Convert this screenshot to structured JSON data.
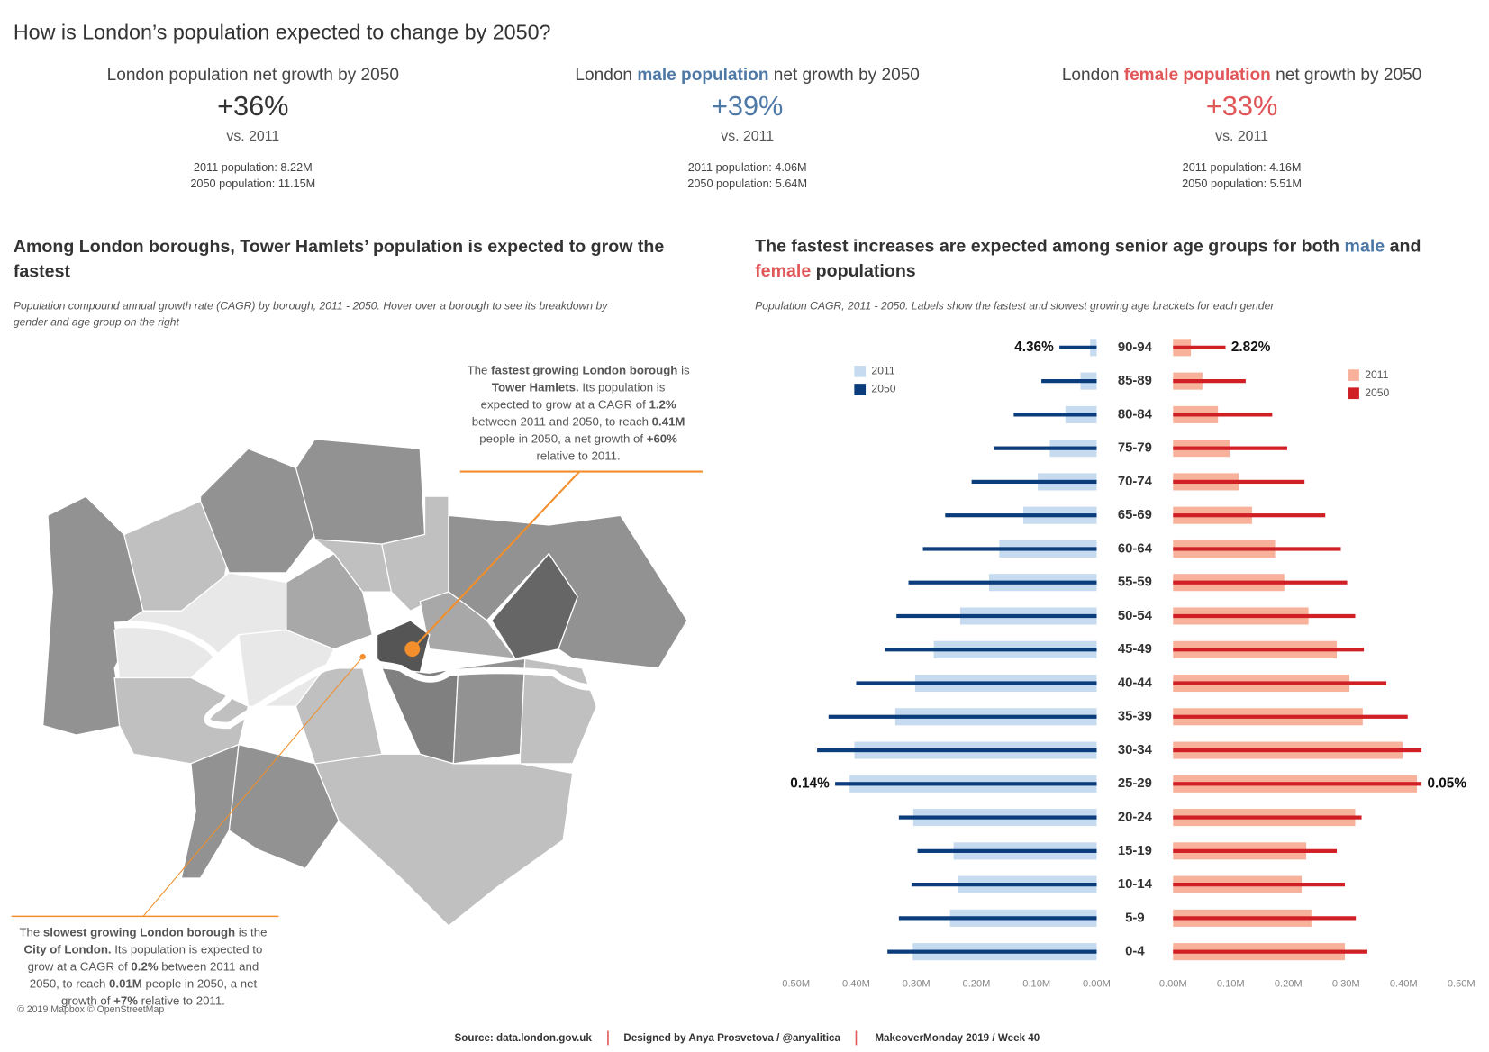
{
  "header": {
    "title": "How is London’s population expected to change by 2050?"
  },
  "kpis": [
    {
      "heading": [
        {
          "text": "London population net growth by 2050"
        }
      ],
      "value": "+36%",
      "color": "#333333",
      "comparison": "vs. 2011",
      "details": [
        "2011 population: 8.22M",
        "2050 population: 11.15M"
      ]
    },
    {
      "heading": [
        {
          "text": "London "
        },
        {
          "text": "male population",
          "color": "#4e79a7",
          "bold": true
        },
        {
          "text": " net growth by 2050"
        }
      ],
      "value": "+39%",
      "color": "#4e79a7",
      "comparison": "vs. 2011",
      "details": [
        "2011 population: 4.06M",
        "2050 population: 5.64M"
      ]
    },
    {
      "heading": [
        {
          "text": "London "
        },
        {
          "text": "female population",
          "color": "#e15759",
          "bold": true
        },
        {
          "text": " net growth by 2050"
        }
      ],
      "value": "+33%",
      "color": "#e15759",
      "comparison": "vs. 2011",
      "details": [
        "2011 population: 4.16M",
        "2050 population: 5.51M"
      ]
    }
  ],
  "map": {
    "title": [
      "Among London boroughs, Tower Hamlets’ population is expected to grow the",
      "fastest"
    ],
    "subtitle": [
      "Population compound annual growth rate (CAGR) by borough, 2011 - 2050. Hover over a borough to see its breakdown by",
      "gender and age group on the right"
    ],
    "annotations": [
      {
        "lines": [
          [
            {
              "text": "The "
            },
            {
              "text": "fastest growing London borough",
              "bold": true
            },
            {
              "text": " is"
            }
          ],
          [
            {
              "text": "Tower Hamlets.",
              "bold": true
            },
            {
              "text": " Its population is"
            }
          ],
          [
            {
              "text": "expected to grow at a CAGR of "
            },
            {
              "text": "1.2%",
              "bold": true
            }
          ],
          [
            {
              "text": "between 2011 and 2050, to reach "
            },
            {
              "text": "0.41M",
              "bold": true
            }
          ],
          [
            {
              "text": "people in 2050, a net growth of "
            },
            {
              "text": "+60%",
              "bold": true
            }
          ],
          [
            {
              "text": "relative to 2011."
            }
          ]
        ]
      },
      {
        "lines": [
          [
            {
              "text": "The "
            },
            {
              "text": "slowest growing London borough",
              "bold": true
            },
            {
              "text": " is the"
            }
          ],
          [
            {
              "text": "City of London.",
              "bold": true
            },
            {
              "text": " Its population is expected to"
            }
          ],
          [
            {
              "text": "grow at a CAGR of "
            },
            {
              "text": "0.2%",
              "bold": true
            },
            {
              "text": " between 2011 and"
            }
          ],
          [
            {
              "text": "2050, to reach "
            },
            {
              "text": "0.01M",
              "bold": true
            },
            {
              "text": " people in 2050, a net"
            }
          ],
          [
            {
              "text": "growth of "
            },
            {
              "text": "+7%",
              "bold": true
            },
            {
              "text": " relative to 2011."
            }
          ]
        ]
      }
    ],
    "credit": "© 2019 Mapbox © OpenStreetMap"
  },
  "chart_data": {
    "type": "pyramid",
    "title": [
      [
        {
          "text": "The fastest increases are expected among senior age groups for both "
        },
        {
          "text": "male",
          "color": "#4e79a7"
        },
        {
          "text": " and"
        }
      ],
      [
        {
          "text": "female",
          "color": "#e15759"
        },
        {
          "text": " populations"
        }
      ]
    ],
    "subtitle": "Population CAGR, 2011 - 2050. Labels show the fastest and slowest growing age brackets for each gender",
    "categories": [
      "90-94",
      "85-89",
      "80-84",
      "75-79",
      "70-74",
      "65-69",
      "60-64",
      "55-59",
      "50-54",
      "45-49",
      "40-44",
      "35-39",
      "30-34",
      "25-29",
      "20-24",
      "15-19",
      "10-14",
      "5-9",
      "0-4"
    ],
    "panels": [
      {
        "xlim": [
          0.5,
          0
        ],
        "xticks": [
          {
            "value": 0.5,
            "label": "0.50M"
          },
          {
            "value": 0.4,
            "label": "0.40M"
          },
          {
            "value": 0.3,
            "label": "0.30M"
          },
          {
            "value": 0.2,
            "label": "0.20M"
          },
          {
            "value": 0.1,
            "label": "0.10M"
          },
          {
            "value": 0,
            "label": "0.00M"
          }
        ],
        "series": [
          {
            "name": "2011",
            "color": "#c6dbef",
            "values": [
              0.011,
              0.027,
              0.052,
              0.078,
              0.098,
              0.122,
              0.162,
              0.179,
              0.227,
              0.271,
              0.302,
              0.335,
              0.403,
              0.411,
              0.305,
              0.238,
              0.23,
              0.244,
              0.306
            ]
          },
          {
            "name": "2050",
            "color": "#0b3d7c",
            "values": [
              0.062,
              0.092,
              0.138,
              0.171,
              0.208,
              0.252,
              0.289,
              0.313,
              0.333,
              0.352,
              0.4,
              0.446,
              0.465,
              0.435,
              0.329,
              0.298,
              0.308,
              0.329,
              0.348
            ]
          }
        ],
        "cagr_labels": [
          "4.36%",
          null,
          null,
          null,
          null,
          null,
          null,
          null,
          null,
          null,
          null,
          null,
          null,
          "0.14%",
          null,
          null,
          null,
          null,
          null
        ]
      },
      {
        "xlim": [
          0,
          0.5
        ],
        "xticks": [
          {
            "value": 0,
            "label": "0.00M"
          },
          {
            "value": 0.1,
            "label": "0.10M"
          },
          {
            "value": 0.2,
            "label": "0.20M"
          },
          {
            "value": 0.3,
            "label": "0.30M"
          },
          {
            "value": 0.4,
            "label": "0.40M"
          },
          {
            "value": 0.5,
            "label": "0.50M"
          }
        ],
        "series": [
          {
            "name": "2011",
            "color": "#f8b29c",
            "values": [
              0.031,
              0.051,
              0.078,
              0.098,
              0.114,
              0.137,
              0.177,
              0.193,
              0.235,
              0.284,
              0.306,
              0.329,
              0.398,
              0.423,
              0.316,
              0.231,
              0.223,
              0.24,
              0.298
            ]
          },
          {
            "name": "2050",
            "color": "#d11f26",
            "values": [
              0.091,
              0.126,
              0.172,
              0.198,
              0.228,
              0.264,
              0.291,
              0.302,
              0.316,
              0.331,
              0.37,
              0.407,
              0.431,
              0.431,
              0.327,
              0.284,
              0.298,
              0.317,
              0.337
            ]
          }
        ],
        "cagr_labels": [
          "2.82%",
          null,
          null,
          null,
          null,
          null,
          null,
          null,
          null,
          null,
          null,
          null,
          null,
          "0.05%",
          null,
          null,
          null,
          null,
          null
        ]
      }
    ]
  },
  "footer": [
    "Source: data.london.gov.uk",
    "Designed by Anya Prosvetova / @anyalitica",
    "MakeoverMonday 2019 / Week 40"
  ]
}
